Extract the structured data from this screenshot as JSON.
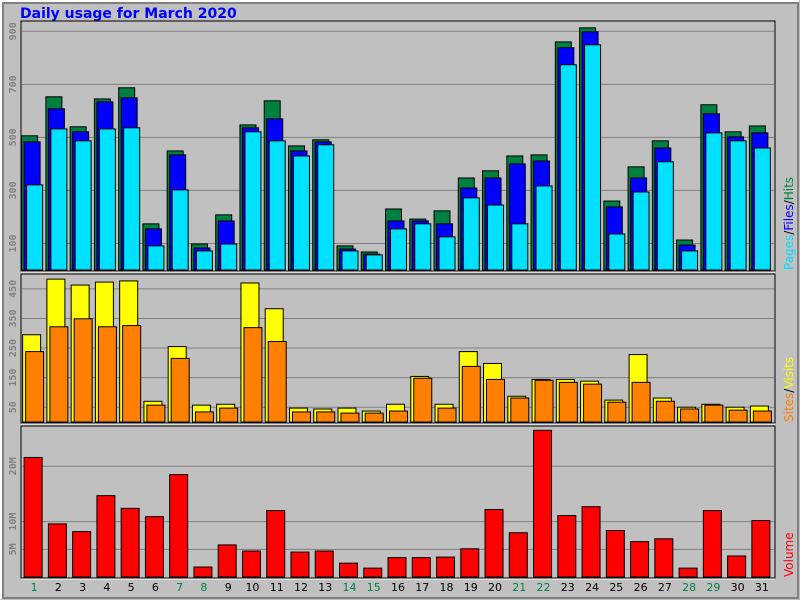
{
  "title": "Daily usage for March 2020",
  "legend_separator": "/",
  "chart_data": [
    {
      "type": "bar",
      "ylim": [
        0,
        935
      ],
      "yticks": [
        100,
        300,
        500,
        700,
        900
      ],
      "grid": true,
      "series": [
        {
          "name": "Hits",
          "color": "#008040",
          "values": [
            506,
            653,
            540,
            645,
            687,
            174,
            449,
            98,
            208,
            547,
            638,
            468,
            491,
            91,
            68,
            230,
            192,
            223,
            347,
            374,
            430,
            434,
            860,
            913,
            260,
            389,
            487,
            113,
            623,
            521,
            543
          ]
        },
        {
          "name": "Files",
          "color": "#0000ff",
          "values": [
            483,
            608,
            521,
            634,
            649,
            155,
            434,
            83,
            185,
            536,
            570,
            449,
            483,
            79,
            60,
            185,
            185,
            174,
            309,
            347,
            400,
            411,
            838,
            898,
            238,
            347,
            460,
            94,
            589,
            502,
            517
          ]
        },
        {
          "name": "Pages",
          "color": "#00e0ff",
          "values": [
            321,
            532,
            487,
            532,
            536,
            91,
            302,
            72,
            98,
            521,
            487,
            430,
            472,
            72,
            57,
            155,
            174,
            125,
            272,
            245,
            174,
            317,
            774,
            849,
            136,
            294,
            408,
            72,
            517,
            487,
            460
          ]
        }
      ]
    },
    {
      "type": "bar",
      "ylim": [
        0,
        497
      ],
      "yticks": [
        50,
        150,
        250,
        350,
        450
      ],
      "grid": true,
      "series": [
        {
          "name": "Visits",
          "color": "#ffff00",
          "values": [
            295,
            483,
            463,
            473,
            477,
            70,
            255,
            57,
            60,
            470,
            383,
            47,
            44,
            47,
            37,
            60,
            154,
            60,
            238,
            198,
            87,
            144,
            144,
            138,
            74,
            228,
            81,
            50,
            60,
            50,
            54
          ]
        },
        {
          "name": "Sites",
          "color": "#ff8000",
          "values": [
            238,
            322,
            349,
            322,
            326,
            57,
            215,
            34,
            47,
            319,
            272,
            34,
            34,
            30,
            30,
            37,
            148,
            47,
            188,
            144,
            81,
            141,
            134,
            128,
            67,
            134,
            70,
            44,
            57,
            40,
            37
          ]
        }
      ]
    },
    {
      "type": "bar",
      "ylim": [
        0,
        27.1
      ],
      "yticks": [
        {
          "value": 5,
          "label": "5M"
        },
        {
          "value": 10,
          "label": "10M"
        },
        {
          "value": 20,
          "label": "20M"
        }
      ],
      "grid": true,
      "categories": [
        "1",
        "2",
        "3",
        "4",
        "5",
        "6",
        "7",
        "8",
        "9",
        "10",
        "11",
        "12",
        "13",
        "14",
        "15",
        "16",
        "17",
        "18",
        "19",
        "20",
        "21",
        "22",
        "23",
        "24",
        "25",
        "26",
        "27",
        "28",
        "29",
        "30",
        "31"
      ],
      "category_colors": [
        "#008040",
        "#000000",
        "#000000",
        "#000000",
        "#000000",
        "#000000",
        "#008040",
        "#008040",
        "#000000",
        "#000000",
        "#000000",
        "#000000",
        "#000000",
        "#008040",
        "#008040",
        "#000000",
        "#000000",
        "#000000",
        "#000000",
        "#000000",
        "#008040",
        "#008040",
        "#000000",
        "#000000",
        "#000000",
        "#000000",
        "#000000",
        "#008040",
        "#008040",
        "#000000",
        "#000000"
      ],
      "series": [
        {
          "name": "Volume",
          "color": "#ff0000",
          "values": [
            21.6,
            9.6,
            8.2,
            14.7,
            12.4,
            10.9,
            18.5,
            1.8,
            5.8,
            4.7,
            12.0,
            4.5,
            4.7,
            2.5,
            1.6,
            3.5,
            3.5,
            3.6,
            5.1,
            12.2,
            8.0,
            26.5,
            11.1,
            12.7,
            8.4,
            6.4,
            6.9,
            1.6,
            12.0,
            3.8,
            10.2
          ]
        }
      ]
    }
  ]
}
